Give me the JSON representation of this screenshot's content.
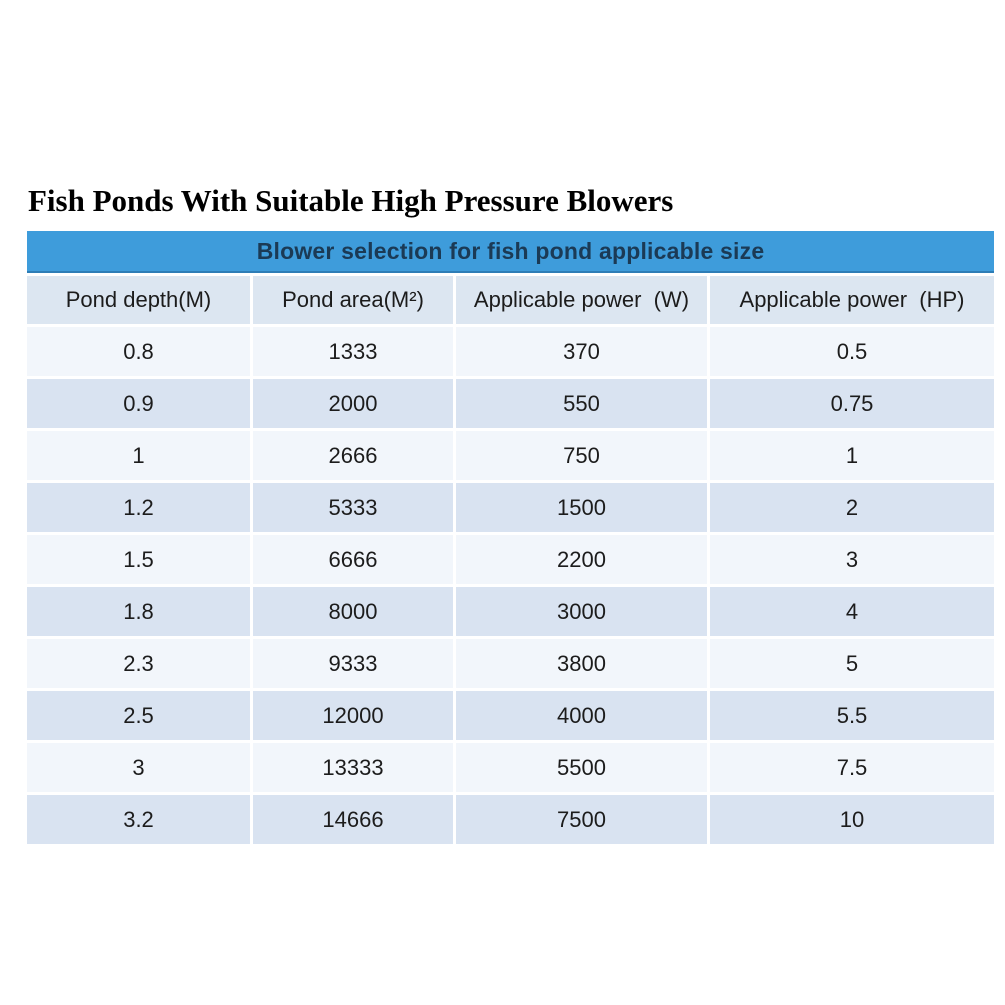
{
  "page": {
    "title": "Fish Ponds With Suitable High Pressure Blowers"
  },
  "table": {
    "banner": "Blower selection for fish pond applicable size",
    "columns": [
      "Pond depth(M)",
      "Pond area(M²)",
      "Applicable power  (W)",
      "Applicable power  (HP)"
    ],
    "rows": [
      [
        "0.8",
        "1333",
        "370",
        "0.5"
      ],
      [
        "0.9",
        "2000",
        "550",
        "0.75"
      ],
      [
        "1",
        "2666",
        "750",
        "1"
      ],
      [
        "1.2",
        "5333",
        "1500",
        "2"
      ],
      [
        "1.5",
        "6666",
        "2200",
        "3"
      ],
      [
        "1.8",
        "8000",
        "3000",
        "4"
      ],
      [
        "2.3",
        "9333",
        "3800",
        "5"
      ],
      [
        "2.5",
        "12000",
        "4000",
        "5.5"
      ],
      [
        "3",
        "13333",
        "5500",
        "7.5"
      ],
      [
        "3.2",
        "14666",
        "7500",
        "10"
      ]
    ]
  },
  "colors": {
    "banner_bg": "#3e9cdb",
    "banner_border": "#2d7db6",
    "banner_text": "#1b3a55",
    "header_row_bg": "#dce6f1",
    "row_odd_bg": "#f2f6fb",
    "row_even_bg": "#d9e3f1",
    "cell_text": "#1c1c1c"
  }
}
